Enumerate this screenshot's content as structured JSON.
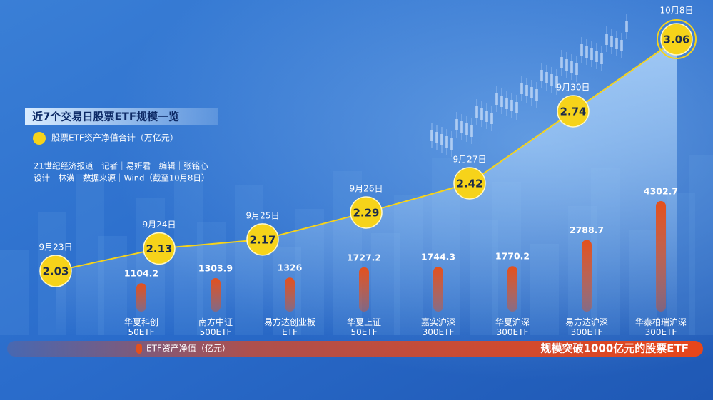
{
  "chart_data": [
    {
      "type": "line",
      "title": "近7个交易日股票ETF规模一览",
      "categories": [
        "9月23日",
        "9月24日",
        "9月25日",
        "9月26日",
        "9月27日",
        "9月30日",
        "10月8日"
      ],
      "series": [
        {
          "name": "股票ETF资产净值合计（万亿元）",
          "color": "#f6d31a",
          "values": [
            2.03,
            2.13,
            2.17,
            2.29,
            2.42,
            2.74,
            3.06
          ]
        }
      ]
    },
    {
      "type": "bar",
      "subtitle": "规模突破1000亿元的股票ETF",
      "categories": [
        "华夏科创\n50ETF",
        "南方中证\n500ETF",
        "易方达创业板\nETF",
        "华夏上证\n50ETF",
        "嘉实沪深\n300ETF",
        "华夏沪深\n300ETF",
        "易方达沪深\n300ETF",
        "华泰柏瑞沪深\n300ETF"
      ],
      "series": [
        {
          "name": "ETF资产净值（亿元）",
          "color": "#e4501c",
          "values": [
            1104.2,
            1303.9,
            1326,
            1727.2,
            1744.3,
            1770.2,
            2788.7,
            4302.7
          ]
        }
      ]
    }
  ],
  "credits": [
    "21世纪经济报道　记者｜易妍君　编辑｜张铭心",
    "设计｜林潢　数据来源｜Wind（截至10月8日）"
  ]
}
